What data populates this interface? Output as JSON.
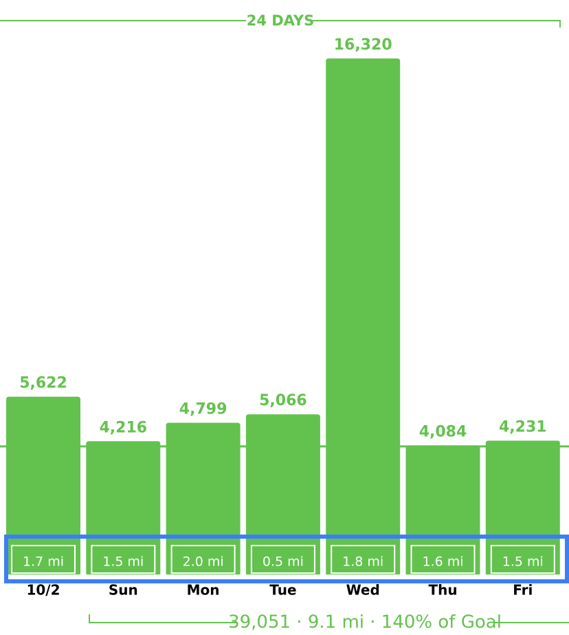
{
  "chart_data": {
    "type": "bar",
    "header": "24 DAYS",
    "footer": "39,051 · 9.1 mi · 140% of Goal",
    "categories": [
      "10/2",
      "Sun",
      "Mon",
      "Tue",
      "Wed",
      "Thu",
      "Fri"
    ],
    "values": [
      5622,
      4216,
      4799,
      5066,
      16320,
      4084,
      4231
    ],
    "value_labels": [
      "5,622",
      "4,216",
      "4,799",
      "5,066",
      "16,320",
      "4,084",
      "4,231"
    ],
    "distance_labels": [
      "1.7 mi",
      "1.5 mi",
      "2.0 mi",
      "0.5 mi",
      "1.8 mi",
      "1.6 mi",
      "1.5 mi"
    ],
    "goal_line": 4050,
    "color": "#63c24e",
    "ylim": [
      0,
      16320
    ]
  }
}
